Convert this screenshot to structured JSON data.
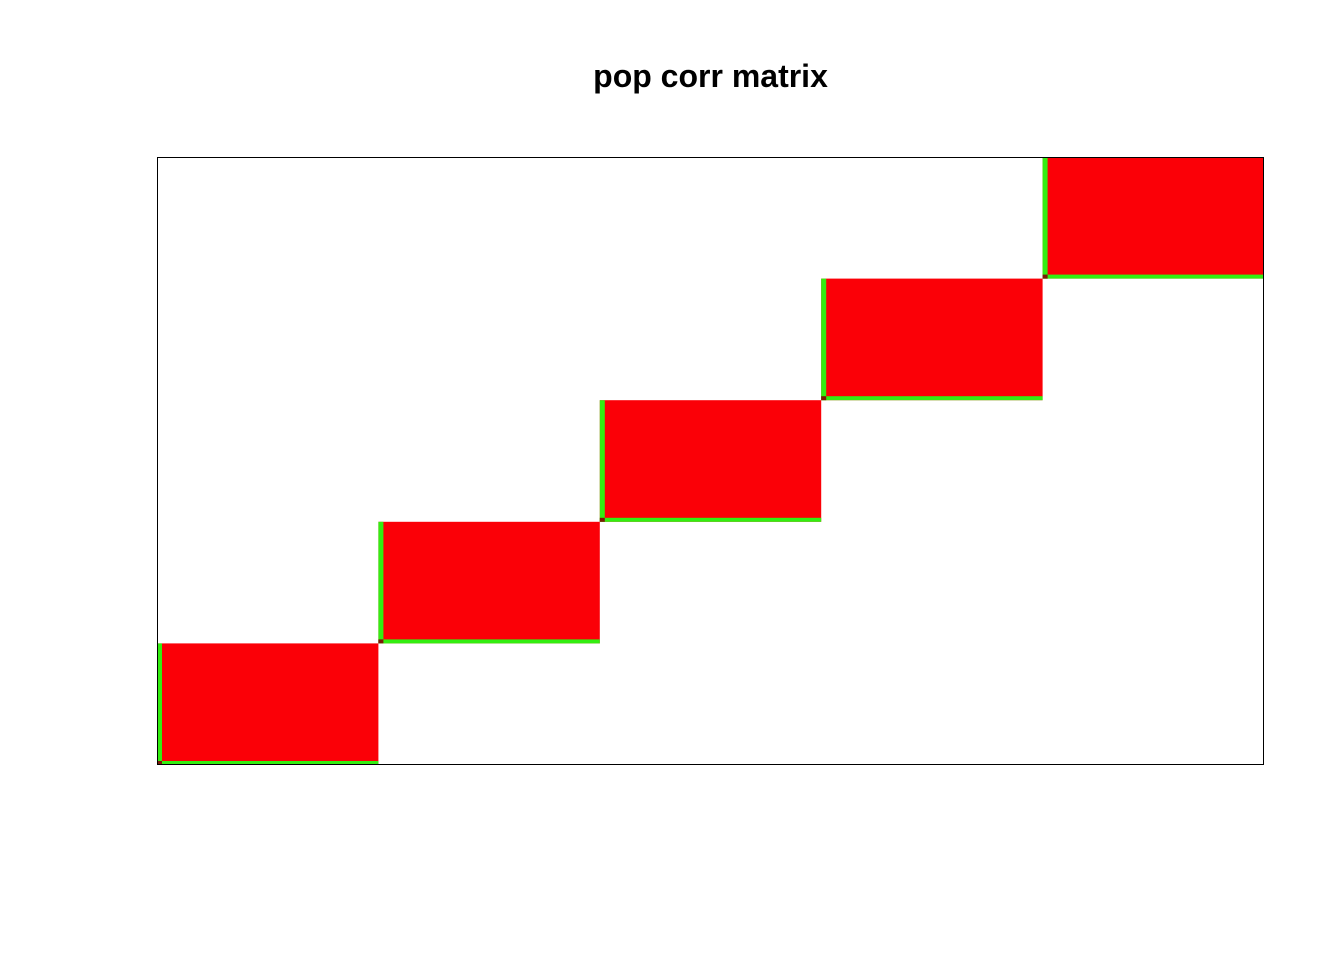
{
  "chart_data": {
    "type": "heatmap",
    "title": "pop corr matrix",
    "xlabel": "",
    "ylabel": "",
    "grid": false,
    "axes_visible": false,
    "n_blocks": 5,
    "block_size": 40,
    "xlim": [
      0,
      200
    ],
    "ylim": [
      0,
      200
    ],
    "blocks": [
      {
        "x": [
          0,
          40
        ],
        "y": [
          0,
          40
        ],
        "value": 1
      },
      {
        "x": [
          40,
          80
        ],
        "y": [
          40,
          80
        ],
        "value": 1
      },
      {
        "x": [
          80,
          120
        ],
        "y": [
          80,
          120
        ],
        "value": 1
      },
      {
        "x": [
          120,
          160
        ],
        "y": [
          120,
          160
        ],
        "value": 1
      },
      {
        "x": [
          160,
          200
        ],
        "y": [
          160,
          200
        ],
        "value": 1
      }
    ],
    "colors": {
      "high": "#fb0007",
      "edge": "#33ee11",
      "corner": "#7a1a05",
      "background": "#ffffff",
      "frame": "#000000"
    }
  }
}
